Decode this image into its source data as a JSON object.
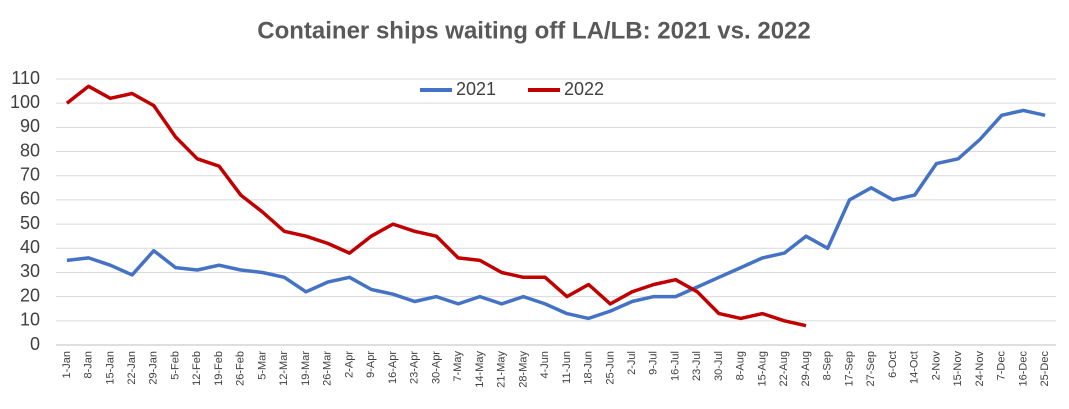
{
  "chart_data": {
    "type": "line",
    "title": "Container ships waiting off LA/LB: 2021 vs. 2022",
    "categories": [
      "1-Jan",
      "8-Jan",
      "15-Jan",
      "22-Jan",
      "29-Jan",
      "5-Feb",
      "12-Feb",
      "19-Feb",
      "26-Feb",
      "5-Mar",
      "12-Mar",
      "19-Mar",
      "26-Mar",
      "2-Apr",
      "9-Apr",
      "16-Apr",
      "23-Apr",
      "30-Apr",
      "7-May",
      "14-May",
      "21-May",
      "28-May",
      "4-Jun",
      "11-Jun",
      "18-Jun",
      "25-Jun",
      "2-Jul",
      "9-Jul",
      "16-Jul",
      "23-Jul",
      "30-Jul",
      "8-Aug",
      "15-Aug",
      "22-Aug",
      "29-Aug",
      "8-Sep",
      "17-Sep",
      "27-Sep",
      "6-Oct",
      "14-Oct",
      "2-Nov",
      "15-Nov",
      "24-Nov",
      "7-Dec",
      "16-Dec",
      "25-Dec"
    ],
    "series": [
      {
        "name": "2021",
        "color": "#4472c4",
        "values": [
          35,
          36,
          33,
          29,
          39,
          32,
          31,
          33,
          31,
          30,
          28,
          22,
          26,
          28,
          23,
          21,
          18,
          20,
          17,
          20,
          17,
          20,
          17,
          13,
          11,
          14,
          18,
          20,
          20,
          24,
          28,
          32,
          36,
          38,
          45,
          40,
          60,
          65,
          60,
          62,
          75,
          77,
          85,
          95,
          97,
          95
        ]
      },
      {
        "name": "2022",
        "color": "#c00000",
        "values": [
          100,
          107,
          102,
          104,
          99,
          86,
          77,
          74,
          62,
          55,
          47,
          45,
          42,
          38,
          45,
          50,
          47,
          45,
          36,
          35,
          30,
          28,
          28,
          20,
          25,
          17,
          22,
          25,
          27,
          22,
          13,
          11,
          13,
          10,
          8,
          null,
          null,
          null,
          null,
          null,
          null,
          null,
          null,
          null,
          null,
          null
        ]
      }
    ],
    "ylim": [
      0,
      110
    ],
    "yticks": [
      0,
      10,
      20,
      30,
      40,
      50,
      60,
      70,
      80,
      90,
      100,
      110
    ],
    "grid": true,
    "legend": "top"
  }
}
